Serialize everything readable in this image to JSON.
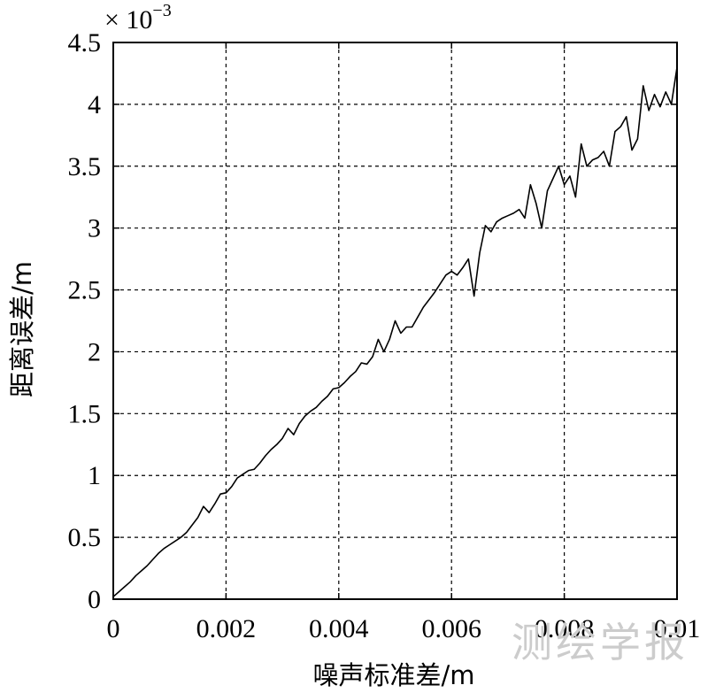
{
  "chart_data": {
    "type": "line",
    "title": "",
    "xlabel": "噪声标准差/m",
    "ylabel": "距离误差/m",
    "y_multiplier": "× 10",
    "y_multiplier_exp": "−3",
    "xlim": [
      0,
      0.01
    ],
    "ylim": [
      0,
      4.5
    ],
    "grid": true,
    "x_ticks": [
      "0",
      "0.002",
      "0.004",
      "0.006",
      "0.008",
      "0.01"
    ],
    "x_tick_values": [
      0,
      0.002,
      0.004,
      0.006,
      0.008,
      0.01
    ],
    "y_ticks": [
      "0",
      "0.5",
      "1",
      "1.5",
      "2",
      "2.5",
      "3",
      "3.5",
      "4",
      "4.5"
    ],
    "y_tick_values": [
      0,
      0.5,
      1,
      1.5,
      2,
      2.5,
      3,
      3.5,
      4,
      4.5
    ],
    "series": [
      {
        "x": [
          0,
          0.0001,
          0.0002,
          0.0003,
          0.0004,
          0.0005,
          0.0006,
          0.0007,
          0.0008,
          0.0009,
          0.001,
          0.0011,
          0.0012,
          0.0013,
          0.0014,
          0.0015,
          0.0016,
          0.0017,
          0.0018,
          0.0019,
          0.002,
          0.0021,
          0.0022,
          0.0023,
          0.0024,
          0.0025,
          0.0026,
          0.0027,
          0.0028,
          0.0029,
          0.003,
          0.0031,
          0.0032,
          0.0033,
          0.0034,
          0.0035,
          0.0036,
          0.0037,
          0.0038,
          0.0039,
          0.004,
          0.0041,
          0.0042,
          0.0043,
          0.0044,
          0.0045,
          0.0046,
          0.0047,
          0.0048,
          0.0049,
          0.005,
          0.0051,
          0.0052,
          0.0053,
          0.0054,
          0.0055,
          0.0056,
          0.0057,
          0.0058,
          0.0059,
          0.006,
          0.0061,
          0.0062,
          0.0063,
          0.0064,
          0.0065,
          0.0066,
          0.0067,
          0.0068,
          0.0069,
          0.007,
          0.0071,
          0.0072,
          0.0073,
          0.0074,
          0.0075,
          0.0076,
          0.0077,
          0.0078,
          0.0079,
          0.008,
          0.0081,
          0.0082,
          0.0083,
          0.0084,
          0.0085,
          0.0086,
          0.0087,
          0.0088,
          0.0089,
          0.009,
          0.0091,
          0.0092,
          0.0093,
          0.0094,
          0.0095,
          0.0096,
          0.0097,
          0.0098,
          0.0099,
          0.01
        ],
        "values": [
          0.02,
          0.06,
          0.1,
          0.14,
          0.19,
          0.23,
          0.27,
          0.32,
          0.37,
          0.41,
          0.44,
          0.47,
          0.5,
          0.54,
          0.6,
          0.66,
          0.75,
          0.7,
          0.77,
          0.85,
          0.86,
          0.91,
          0.98,
          1.01,
          1.04,
          1.05,
          1.1,
          1.16,
          1.21,
          1.25,
          1.3,
          1.38,
          1.33,
          1.42,
          1.48,
          1.52,
          1.55,
          1.6,
          1.64,
          1.7,
          1.71,
          1.75,
          1.8,
          1.84,
          1.91,
          1.9,
          1.96,
          2.1,
          2.0,
          2.1,
          2.25,
          2.15,
          2.2,
          2.2,
          2.28,
          2.36,
          2.42,
          2.48,
          2.55,
          2.62,
          2.65,
          2.62,
          2.68,
          2.75,
          2.45,
          2.8,
          3.02,
          2.97,
          3.05,
          3.08,
          3.1,
          3.12,
          3.15,
          3.08,
          3.35,
          3.2,
          3.0,
          3.3,
          3.4,
          3.5,
          3.35,
          3.42,
          3.25,
          3.68,
          3.5,
          3.55,
          3.57,
          3.62,
          3.5,
          3.78,
          3.82,
          3.9,
          3.63,
          3.72,
          4.15,
          3.95,
          4.08,
          3.98,
          4.1,
          4.0,
          4.3
        ]
      }
    ]
  },
  "watermark": "测绘学报"
}
